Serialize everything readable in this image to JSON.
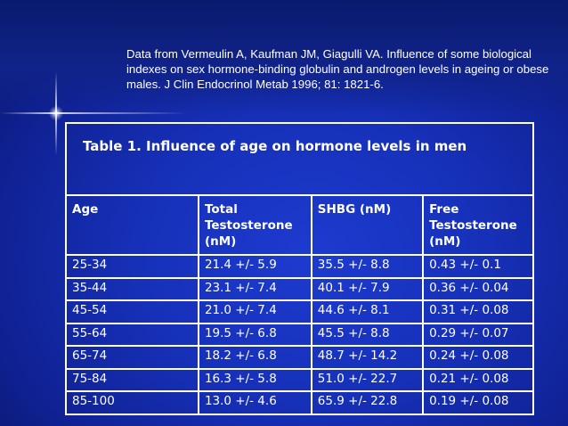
{
  "citation": "Data from Vermeulin A, Kaufman JM, Giagulli VA. Influence of some biological indexes on sex hormone-binding globulin and androgen levels in ageing or obese males. J Clin Endocrinol Metab 1996; 81: 1821-6.",
  "table": {
    "title": "Table 1. Influence of age on hormone levels in men",
    "headers": [
      "Age",
      "Total Testosterone (nM)",
      "SHBG (nM)",
      "Free Testosterone (nM)"
    ],
    "rows": [
      [
        "25-34",
        "21.4 +/- 5.9",
        "35.5 +/- 8.8",
        "0.43 +/- 0.1"
      ],
      [
        "35-44",
        "23.1 +/- 7.4",
        "40.1 +/- 7.9",
        "0.36 +/- 0.04"
      ],
      [
        "45-54",
        "21.0 +/- 7.4",
        "44.6 +/- 8.1",
        "0.31 +/- 0.08"
      ],
      [
        "55-64",
        "19.5 +/- 6.8",
        "45.5 +/- 8.8",
        "0.29 +/- 0.07"
      ],
      [
        "65-74",
        "18.2 +/- 6.8",
        "48.7 +/- 14.2",
        "0.24 +/- 0.08"
      ],
      [
        "75-84",
        "16.3 +/- 5.8",
        "51.0 +/- 22.7",
        "0.21 +/- 0.08"
      ],
      [
        "85-100",
        "13.0 +/- 4.6",
        "65.9 +/- 22.8",
        "0.19 +/- 0.08"
      ]
    ]
  }
}
